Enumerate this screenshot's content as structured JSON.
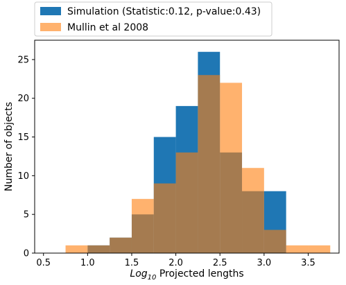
{
  "chart_data": {
    "type": "bar",
    "subtype": "overlaid-histogram",
    "xlabel_base": "Log",
    "xlabel_subscript": "10",
    "xlabel_rest": " Projected lengths",
    "ylabel": "Number of objects",
    "xlim": [
      0.4,
      3.85
    ],
    "ylim": [
      0,
      27.5
    ],
    "xticks": [
      "0.5",
      "1.0",
      "1.5",
      "2.0",
      "2.5",
      "3.0",
      "3.5"
    ],
    "xtick_values": [
      0.5,
      1.0,
      1.5,
      2.0,
      2.5,
      3.0,
      3.5
    ],
    "yticks": [
      "0",
      "5",
      "10",
      "15",
      "20",
      "25"
    ],
    "ytick_values": [
      0,
      5,
      10,
      15,
      20,
      25
    ],
    "grid": false,
    "legend_placement": "above plot, left",
    "series": [
      {
        "name": "Simulation (Statistic:0.12, p-value:0.43)",
        "color": "#1f77b4",
        "alpha": 1.0,
        "bins": [
          {
            "x0": 1.0,
            "x1": 1.25,
            "value": 1
          },
          {
            "x0": 1.25,
            "x1": 1.5,
            "value": 2
          },
          {
            "x0": 1.5,
            "x1": 1.75,
            "value": 5
          },
          {
            "x0": 1.75,
            "x1": 2.0,
            "value": 15
          },
          {
            "x0": 2.0,
            "x1": 2.25,
            "value": 19
          },
          {
            "x0": 2.25,
            "x1": 2.5,
            "value": 26
          },
          {
            "x0": 2.5,
            "x1": 2.75,
            "value": 13
          },
          {
            "x0": 2.75,
            "x1": 3.0,
            "value": 8
          },
          {
            "x0": 3.0,
            "x1": 3.25,
            "value": 8
          }
        ]
      },
      {
        "name": "Mullin et al 2008",
        "color": "#ff7f0e",
        "alpha": 0.6,
        "bins": [
          {
            "x0": 0.75,
            "x1": 1.0,
            "value": 1
          },
          {
            "x0": 1.0,
            "x1": 1.25,
            "value": 1
          },
          {
            "x0": 1.25,
            "x1": 1.5,
            "value": 2
          },
          {
            "x0": 1.5,
            "x1": 1.75,
            "value": 7
          },
          {
            "x0": 1.75,
            "x1": 2.0,
            "value": 9
          },
          {
            "x0": 2.0,
            "x1": 2.25,
            "value": 13
          },
          {
            "x0": 2.25,
            "x1": 2.5,
            "value": 23
          },
          {
            "x0": 2.5,
            "x1": 2.75,
            "value": 22
          },
          {
            "x0": 2.75,
            "x1": 3.0,
            "value": 11
          },
          {
            "x0": 3.0,
            "x1": 3.25,
            "value": 3
          },
          {
            "x0": 3.25,
            "x1": 3.5,
            "value": 1
          },
          {
            "x0": 3.5,
            "x1": 3.75,
            "value": 1
          }
        ]
      }
    ]
  }
}
